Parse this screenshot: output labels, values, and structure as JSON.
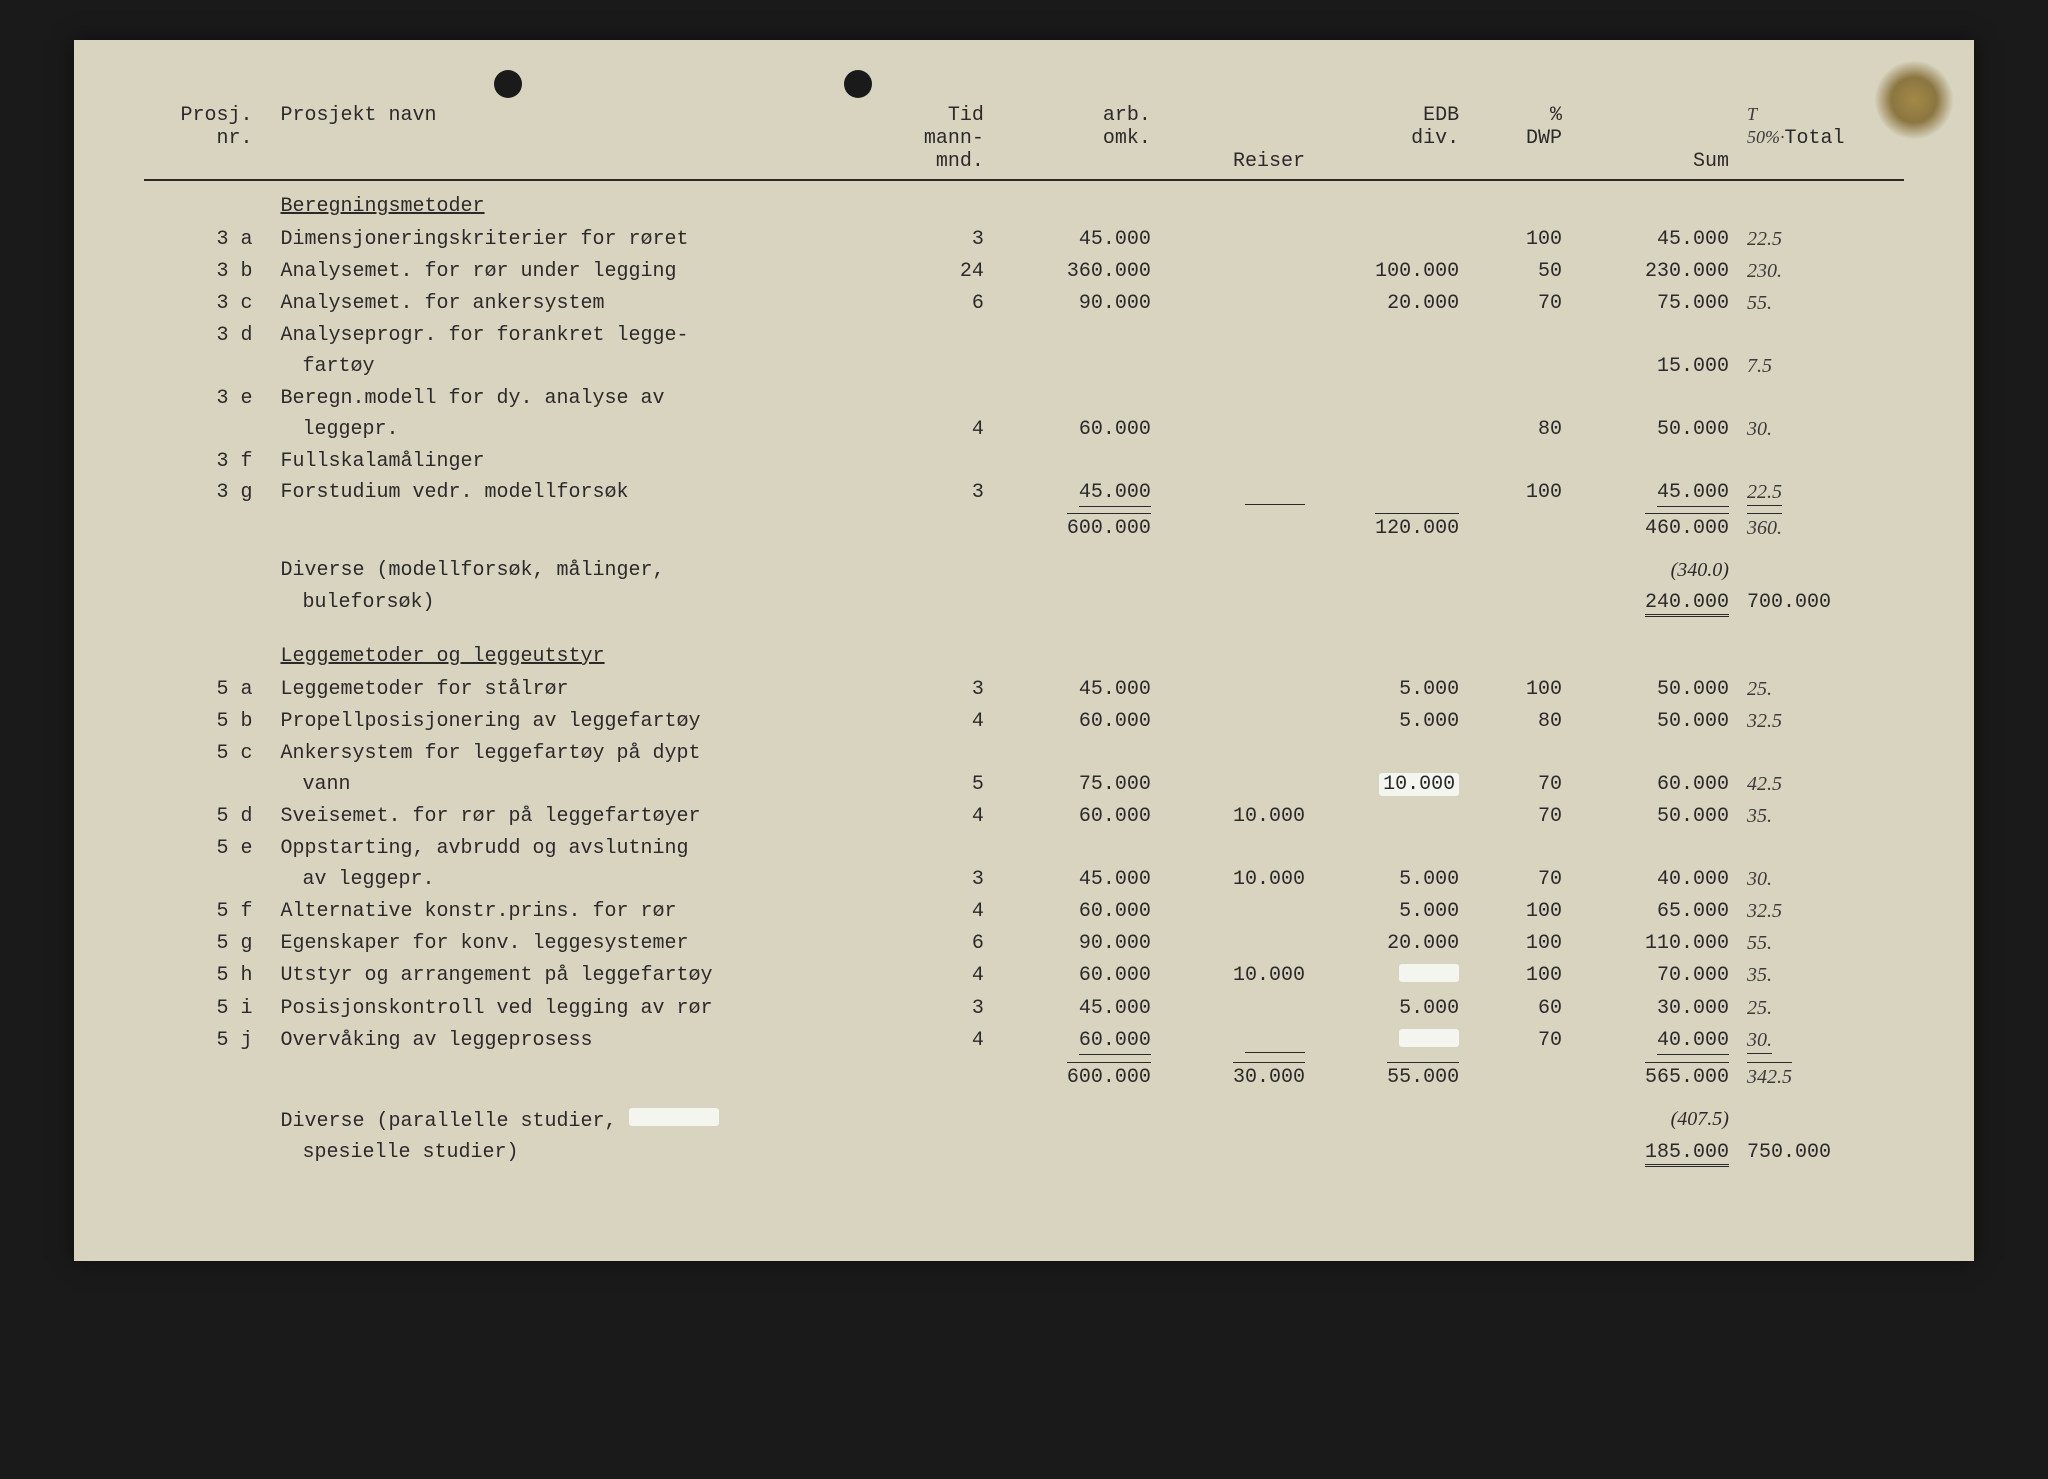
{
  "headers": {
    "nr": "Prosj.\nnr.",
    "name": "Prosjekt navn",
    "tid": "Tid\nmann-\nmnd.",
    "arb": "arb.\nomk.",
    "reiser": "Reiser",
    "edb": "EDB\ndiv.",
    "dwp": "%\nDWP",
    "sum": "Sum",
    "total_anno": "T",
    "total_anno2": "50%·",
    "total": "Total"
  },
  "section1": {
    "title": "Beregningsmetoder",
    "rows": [
      {
        "nr": "3 a",
        "name": "Dimensjoneringskriterier for røret",
        "tid": "3",
        "arb": "45.000",
        "reiser": "",
        "edb": "",
        "dwp": "100",
        "sum": "45.000",
        "hw": "22.5"
      },
      {
        "nr": "3 b",
        "name": "Analysemet. for rør under legging",
        "tid": "24",
        "arb": "360.000",
        "reiser": "",
        "edb": "100.000",
        "dwp": "50",
        "sum": "230.000",
        "hw": "230."
      },
      {
        "nr": "3 c",
        "name": "Analysemet. for ankersystem",
        "tid": "6",
        "arb": "90.000",
        "reiser": "",
        "edb": "20.000",
        "dwp": "70",
        "sum": "75.000",
        "hw": "55."
      },
      {
        "nr": "3 d",
        "name": "Analyseprogr. for forankret legge-",
        "name2": "fartøy",
        "tid": "",
        "arb": "",
        "reiser": "",
        "edb": "",
        "dwp": "",
        "sum": "15.000",
        "hw": "7.5"
      },
      {
        "nr": "3 e",
        "name": "Beregn.modell for dy. analyse av",
        "name2": "leggepr.",
        "tid": "4",
        "arb": "60.000",
        "reiser": "",
        "edb": "",
        "dwp": "80",
        "sum": "50.000",
        "hw": "30."
      },
      {
        "nr": "3 f",
        "name": "Fullskalamålinger",
        "tid": "",
        "arb": "",
        "reiser": "",
        "edb": "",
        "dwp": "",
        "sum": "",
        "hw": ""
      },
      {
        "nr": "3 g",
        "name": "Forstudium vedr. modellforsøk",
        "tid": "3",
        "arb": "45.000",
        "reiser": "",
        "edb": "",
        "dwp": "100",
        "sum": "45.000",
        "hw": "22.5",
        "underline": true
      }
    ],
    "subtotal": {
      "arb": "600.000",
      "edb": "120.000",
      "sum": "460.000",
      "hw": "360."
    },
    "diverse": {
      "label": "Diverse (modellforsøk, målinger,",
      "label2": "buleforsøk)",
      "paren": "(340.0)",
      "sum": "240.000",
      "total": "700.000"
    }
  },
  "section2": {
    "title": "Leggemetoder og leggeutstyr",
    "rows": [
      {
        "nr": "5 a",
        "name": "Leggemetoder for stålrør",
        "tid": "3",
        "arb": "45.000",
        "reiser": "",
        "edb": "5.000",
        "dwp": "100",
        "sum": "50.000",
        "hw": "25."
      },
      {
        "nr": "5 b",
        "name": "Propellposisjonering av leggefartøy",
        "tid": "4",
        "arb": "60.000",
        "reiser": "",
        "edb": "5.000",
        "dwp": "80",
        "sum": "50.000",
        "hw": "32.5"
      },
      {
        "nr": "5 c",
        "name": "Ankersystem for leggefartøy på dypt",
        "name2": "vann",
        "tid": "5",
        "arb": "75.000",
        "reiser": "",
        "edb": "10.000",
        "dwp": "70",
        "sum": "60.000",
        "hw": "42.5",
        "edb_whiteout": true
      },
      {
        "nr": "5 d",
        "name": "Sveisemet. for rør på leggefartøyer",
        "tid": "4",
        "arb": "60.000",
        "reiser": "10.000",
        "edb": "",
        "dwp": "70",
        "sum": "50.000",
        "hw": "35."
      },
      {
        "nr": "5 e",
        "name": "Oppstarting, avbrudd og avslutning",
        "name2": "av leggepr.",
        "tid": "3",
        "arb": "45.000",
        "reiser": "10.000",
        "edb": "5.000",
        "dwp": "70",
        "sum": "40.000",
        "hw": "30."
      },
      {
        "nr": "5 f",
        "name": "Alternative konstr.prins. for rør",
        "tid": "4",
        "arb": "60.000",
        "reiser": "",
        "edb": "5.000",
        "dwp": "100",
        "sum": "65.000",
        "hw": "32.5"
      },
      {
        "nr": "5 g",
        "name": "Egenskaper for konv. leggesystemer",
        "tid": "6",
        "arb": "90.000",
        "reiser": "",
        "edb": "20.000",
        "dwp": "100",
        "sum": "110.000",
        "hw": "55."
      },
      {
        "nr": "5 h",
        "name": "Utstyr og arrangement på leggefartøy",
        "tid": "4",
        "arb": "60.000",
        "reiser": "10.000",
        "edb": "",
        "dwp": "100",
        "sum": "70.000",
        "hw": "35.",
        "edb_whiteout": true
      },
      {
        "nr": "5 i",
        "name": "Posisjonskontroll ved legging av rør",
        "tid": "3",
        "arb": "45.000",
        "reiser": "",
        "edb": "5.000",
        "dwp": "60",
        "sum": "30.000",
        "hw": "25."
      },
      {
        "nr": "5 j",
        "name": "Overvåking av leggeprosess",
        "tid": "4",
        "arb": "60.000",
        "reiser": "",
        "edb": "",
        "dwp": "70",
        "sum": "40.000",
        "hw": "30.",
        "underline": true,
        "edb_whiteout": true
      }
    ],
    "subtotal": {
      "arb": "600.000",
      "reiser": "30.000",
      "edb": "55.000",
      "sum": "565.000",
      "hw": "342.5"
    },
    "diverse": {
      "label": "Diverse (parallelle studier,",
      "label2": "spesielle studier)",
      "paren": "(407.5)",
      "sum": "185.000",
      "total": "750.000",
      "whiteout": true
    }
  }
}
